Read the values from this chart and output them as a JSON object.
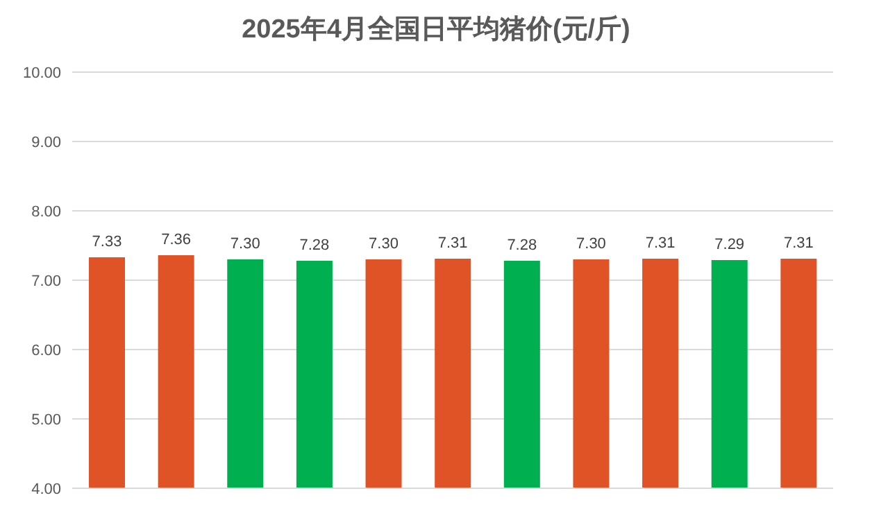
{
  "chart_data": {
    "type": "bar",
    "title": "2025年4月全国日平均猪价(元/斤)",
    "categories": [
      null,
      null,
      null,
      null,
      null,
      null,
      null,
      null,
      null,
      null,
      null
    ],
    "values": [
      7.33,
      7.36,
      7.3,
      7.28,
      7.3,
      7.31,
      7.28,
      7.3,
      7.31,
      7.29,
      7.31
    ],
    "value_labels": [
      "7.33",
      "7.36",
      "7.30",
      "7.28",
      "7.30",
      "7.31",
      "7.28",
      "7.30",
      "7.31",
      "7.29",
      "7.31"
    ],
    "colors": [
      "#e05326",
      "#e05326",
      "#00b050",
      "#00b050",
      "#e05326",
      "#e05326",
      "#00b050",
      "#e05326",
      "#e05326",
      "#00b050",
      "#e05326"
    ],
    "ylim": [
      4,
      10
    ],
    "yticks": [
      {
        "value": 4,
        "label": "4.00"
      },
      {
        "value": 5,
        "label": "5.00"
      },
      {
        "value": 6,
        "label": "6.00"
      },
      {
        "value": 7,
        "label": "7.00"
      },
      {
        "value": 8,
        "label": "8.00"
      },
      {
        "value": 9,
        "label": "9.00"
      },
      {
        "value": 10,
        "label": "10.00"
      }
    ],
    "grid": "y",
    "tick_labels": "y"
  }
}
